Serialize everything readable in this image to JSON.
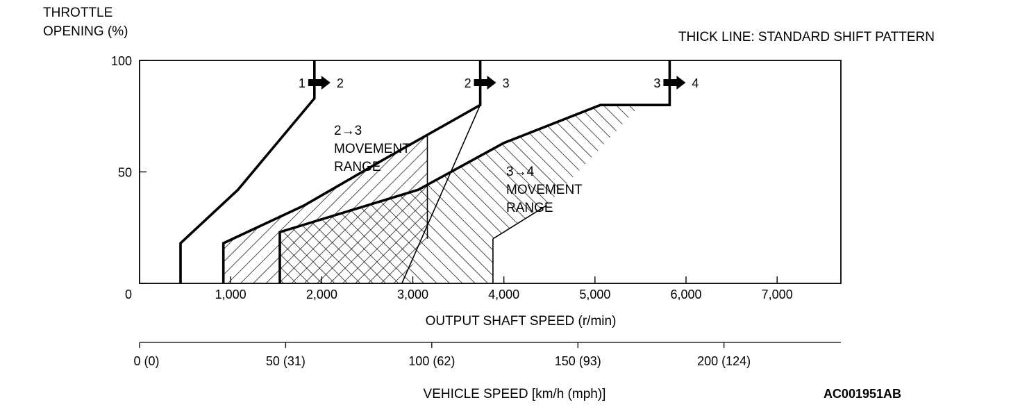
{
  "chart_data": {
    "type": "line",
    "title": "",
    "note": "THICK LINE: STANDARD SHIFT PATTERN",
    "figure_id": "AC001951AB",
    "yaxis": {
      "label_lines": [
        "THROTTLE",
        "OPENING (%)"
      ],
      "range": [
        0,
        100
      ],
      "ticks": [
        "0",
        "50",
        "100"
      ],
      "tick_values": [
        0,
        50,
        100
      ]
    },
    "xaxis": {
      "label": "OUTPUT SHAFT SPEED (r/min)",
      "range": [
        0,
        7700
      ],
      "ticks": [
        "1,000",
        "2,000",
        "3,000",
        "4,000",
        "5,000",
        "6,000",
        "7,000"
      ],
      "tick_values": [
        1000,
        2000,
        3000,
        4000,
        5000,
        6000,
        7000
      ]
    },
    "secondary_xaxis": {
      "label": "VEHICLE SPEED [km/h (mph)]",
      "ticks": [
        "0 (0)",
        "50 (31)",
        "100 (62)",
        "150 (93)",
        "200 (124)"
      ],
      "tick_values": [
        0,
        50,
        100,
        150,
        200
      ],
      "speed_max": 240
    },
    "series": [
      {
        "shift_from": "1",
        "shift_to": "2",
        "x": [
          450,
          450,
          1080,
          1920,
          1920
        ],
        "y": [
          0,
          18,
          42,
          83,
          100
        ]
      },
      {
        "shift_from": "2",
        "shift_to": "3",
        "x": [
          920,
          920,
          1810,
          2700,
          3740,
          3740
        ],
        "y": [
          0,
          18,
          35,
          56,
          80,
          100
        ]
      },
      {
        "shift_from": "3",
        "shift_to": "4",
        "x": [
          1540,
          1540,
          3060,
          4000,
          5060,
          5820,
          5820
        ],
        "y": [
          0,
          23,
          42,
          63,
          80,
          80,
          100
        ]
      }
    ],
    "ranges": [
      {
        "label_lines": [
          "2→3",
          "MOVEMENT",
          "RANGE"
        ],
        "polygon": [
          [
            920,
            0
          ],
          [
            920,
            18
          ],
          [
            1810,
            35
          ],
          [
            2700,
            56
          ],
          [
            3740,
            80
          ],
          [
            3160,
            67
          ],
          [
            3160,
            20
          ],
          [
            2880,
            0
          ]
        ]
      },
      {
        "label_lines": [
          "3→4",
          "MOVEMENT",
          "RANGE"
        ],
        "polygon": [
          [
            1540,
            0
          ],
          [
            1540,
            23
          ],
          [
            3060,
            42
          ],
          [
            4000,
            63
          ],
          [
            5060,
            80
          ],
          [
            5500,
            80
          ],
          [
            4470,
            35
          ],
          [
            3880,
            20
          ],
          [
            3880,
            0
          ]
        ]
      }
    ]
  }
}
